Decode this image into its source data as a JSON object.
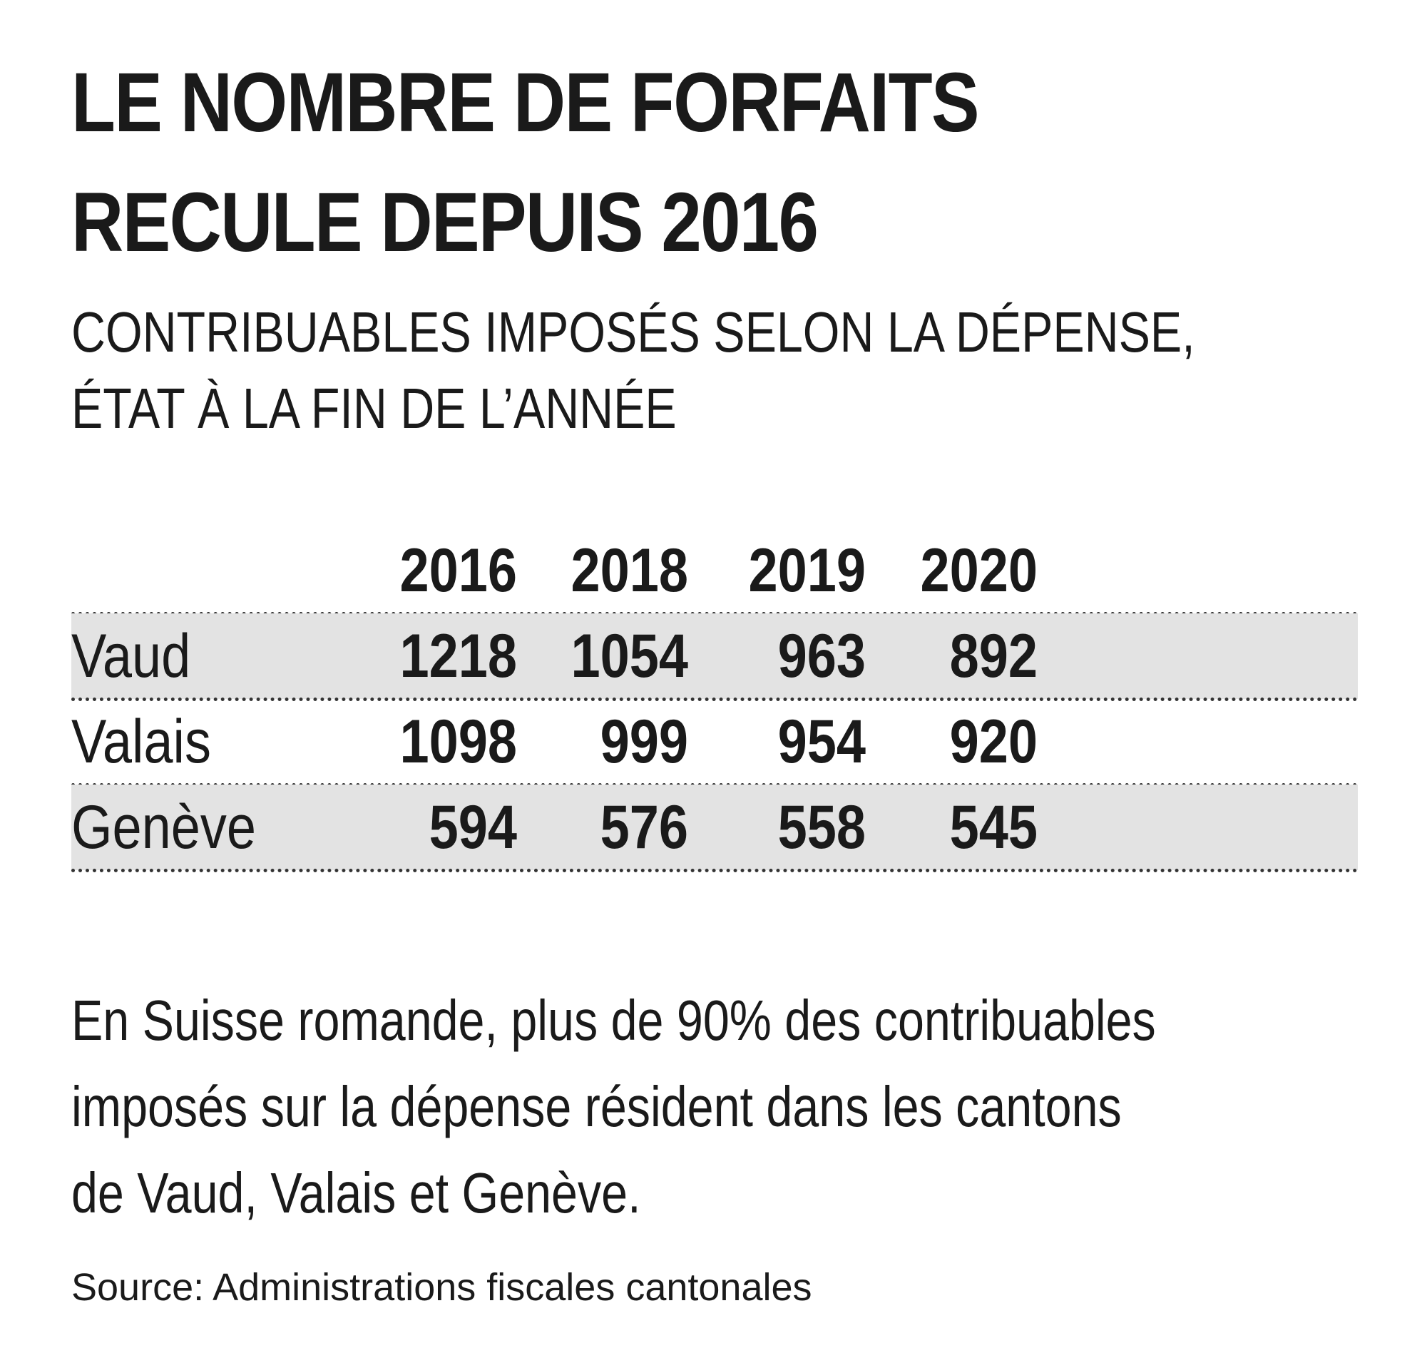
{
  "title_lines": [
    "LE NOMBRE DE FORFAITS",
    "RECULE DEPUIS 2016"
  ],
  "subtitle_lines": [
    "CONTRIBUABLES IMPOSÉS SELON LA DÉPENSE,",
    "ÉTAT À LA FIN DE L’ANNÉE"
  ],
  "note_lines": [
    "En Suisse romande, plus de 90% des contribuables",
    "imposés sur la dépense résident dans les cantons",
    "de Vaud, Valais et Genève."
  ],
  "source": "Source: Administrations fiscales cantonales",
  "chart_data": {
    "type": "table",
    "columns": [
      "2016",
      "2018",
      "2019",
      "2020"
    ],
    "rows": [
      {
        "label": "Vaud",
        "values": [
          1218,
          1054,
          963,
          892
        ]
      },
      {
        "label": "Valais",
        "values": [
          1098,
          999,
          954,
          920
        ]
      },
      {
        "label": "Genève",
        "values": [
          594,
          576,
          558,
          545
        ]
      }
    ],
    "title": "LE NOMBRE DE FORFAITS RECULE DEPUIS 2016",
    "subtitle": "CONTRIBUABLES IMPOSÉS SELON LA DÉPENSE, ÉTAT À LA FIN DE L’ANNÉE",
    "row_shading": "alternate",
    "shade_color": "#e3e3e3",
    "separator_style": "dotted"
  }
}
